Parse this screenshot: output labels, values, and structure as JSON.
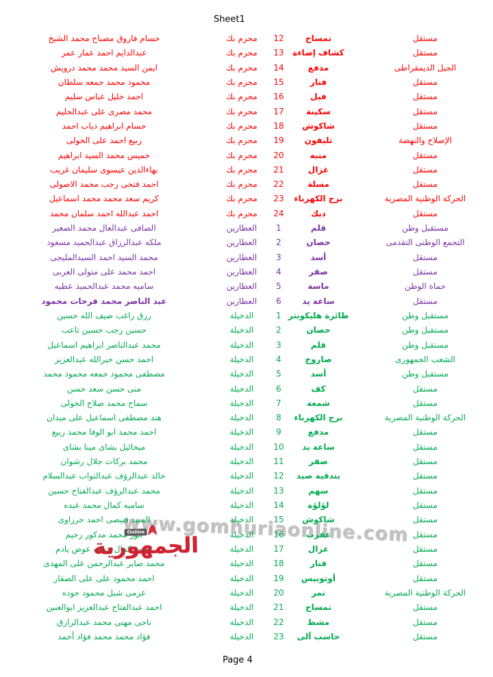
{
  "page": {
    "title": "Sheet1",
    "footer": "Page 4"
  },
  "palette": {
    "red": "#fe0000",
    "purple": "#7b31a0",
    "green": "#00a94f",
    "watermark_gray": "#b9b9b9",
    "logo_red": "#cf2130"
  },
  "watermark": {
    "url_text": "www.gomhuriaonline.com",
    "logo_text": "الجمهورية",
    "logo_sub": "Online"
  },
  "rows": [
    {
      "name": "حسام فاروق مصباح محمد الشيخ",
      "symbol": "تمساح",
      "number": 12,
      "district": "محرم بك",
      "party": "مستقل",
      "color": "red"
    },
    {
      "name": "عبدالدايم احمد عمار عمر",
      "symbol": "كشاف إضاءة",
      "number": 13,
      "district": "محرم بك",
      "party": "مستقل",
      "color": "red"
    },
    {
      "name": "ايمن السيد محمد محمد درويش",
      "symbol": "مدفع",
      "number": 14,
      "district": "محرم بك",
      "party": "الجيل الديمقراطى",
      "color": "red"
    },
    {
      "name": "محمود محمد جمعه سلطان",
      "symbol": "فنار",
      "number": 15,
      "district": "محرم بك",
      "party": "مستقل",
      "color": "red"
    },
    {
      "name": "احمد خليل عباس سليم",
      "symbol": "فيل",
      "number": 16,
      "district": "محرم بك",
      "party": "مستقل",
      "color": "red"
    },
    {
      "name": "محمد مصرى على عبدالحليم",
      "symbol": "سكينة",
      "number": 17,
      "district": "محرم بك",
      "party": "مستقل",
      "color": "red"
    },
    {
      "name": "حسام ابراهيم دياب احمد",
      "symbol": "شاكوش",
      "number": 18,
      "district": "محرم بك",
      "party": "مستقل",
      "color": "red"
    },
    {
      "name": "ربيع احمد على الخولى",
      "symbol": "تليفون",
      "number": 19,
      "district": "محرم بك",
      "party": "الإصلاح والنهضة",
      "color": "red"
    },
    {
      "name": "خميس محمد السيد ابراهيم",
      "symbol": "منبه",
      "number": 20,
      "district": "محرم بك",
      "party": "مستقل",
      "color": "red"
    },
    {
      "name": "بهاءالدين عيسوى سليمان غريب",
      "symbol": "غزال",
      "number": 21,
      "district": "محرم بك",
      "party": "مستقل",
      "color": "red"
    },
    {
      "name": "احمد فتحى رجب محمد الاصولى",
      "symbol": "مسلة",
      "number": 22,
      "district": "محرم بك",
      "party": "مستقل",
      "color": "red"
    },
    {
      "name": "كريم سعد محمد محمد اسماعيل",
      "symbol": "برج الكهرباء",
      "number": 23,
      "district": "محرم بك",
      "party": "الحركة الوطنية المصرية",
      "color": "red"
    },
    {
      "name": "احمد عبدالله احمد سلمان محمد",
      "symbol": "ديك",
      "number": 24,
      "district": "محرم بك",
      "party": "مستقل",
      "color": "red"
    },
    {
      "name": "الصافى عبدالعال محمد الصغير",
      "symbol": "قلم",
      "number": 1,
      "district": "العطارين",
      "party": "مستقبل وطن",
      "color": "purple"
    },
    {
      "name": "ملكه عبدالرزاق عبدالحميد مسعود",
      "symbol": "حصان",
      "number": 2,
      "district": "العطارين",
      "party": "التجمع الوطنى التقدمى",
      "color": "purple"
    },
    {
      "name": "محمد السيد احمد السيدالمليجى",
      "symbol": "أسد",
      "number": 3,
      "district": "العطارين",
      "party": "مستقل",
      "color": "purple"
    },
    {
      "name": "احمد محمد على متولى العربى",
      "symbol": "صقر",
      "number": 4,
      "district": "العطارين",
      "party": "مستقل",
      "color": "purple"
    },
    {
      "name": "ساميه محمد عبدالحميد عطيه",
      "symbol": "ماسة",
      "number": 5,
      "district": "العطارين",
      "party": "حماة الوطن",
      "color": "purple"
    },
    {
      "name": "عبد الناصر محمد فرحات محمود",
      "symbol": "ساعة يد",
      "number": 6,
      "district": "العطارين",
      "party": "مستقل",
      "color": "purple",
      "bold": true
    },
    {
      "name": "رزق راغب ضيف الله حسين",
      "symbol": "طائرة هليكوبتر",
      "number": 1,
      "district": "الدخيلة",
      "party": "مستقبل وطن",
      "color": "green"
    },
    {
      "name": "حسين رجب حسين تاعب",
      "symbol": "حصان",
      "number": 2,
      "district": "الدخيلة",
      "party": "مستقبل وطن",
      "color": "green"
    },
    {
      "name": "محمد عبدالناصر ابراهيم اسماعيل",
      "symbol": "قلم",
      "number": 3,
      "district": "الدخيلة",
      "party": "مستقبل وطن",
      "color": "green"
    },
    {
      "name": "احمد حسن خيرالله عبدالعزيز",
      "symbol": "صاروخ",
      "number": 4,
      "district": "الدخيلة",
      "party": "الشعب الجمهورى",
      "color": "green"
    },
    {
      "name": "مصطفى محمود جمعه محمود محمد",
      "symbol": "أسد",
      "number": 5,
      "district": "الدخيلة",
      "party": "مستقبل وطن",
      "color": "green"
    },
    {
      "name": "منى حسن سعد حسن",
      "symbol": "كف",
      "number": 6,
      "district": "الدخيلة",
      "party": "مستقل",
      "color": "green"
    },
    {
      "name": "سماح محمد صلاح الخولى",
      "symbol": "شمعة",
      "number": 7,
      "district": "الدخيلة",
      "party": "مستقل",
      "color": "green"
    },
    {
      "name": "هند مصطفى اسماعيل على ميدان",
      "symbol": "برج الكهرباء",
      "number": 8,
      "district": "الدخيلة",
      "party": "الحركة الوطنية المصرية",
      "color": "green"
    },
    {
      "name": "احمد محمد ابو الوفا محمد ربيع",
      "symbol": "مدفع",
      "number": 9,
      "district": "الدخيلة",
      "party": "مستقل",
      "color": "green"
    },
    {
      "name": "ميخائيل بشاى مينا بشاى",
      "symbol": "ساعة يد",
      "number": 10,
      "district": "الدخيلة",
      "party": "مستقل",
      "color": "green"
    },
    {
      "name": "محمد بركات جلال رشوان",
      "symbol": "صقر",
      "number": 11,
      "district": "الدخيلة",
      "party": "مستقل",
      "color": "green"
    },
    {
      "name": "خالد عبدالرؤف عبدالتواب عبدالسلام",
      "symbol": "بندقية صيد",
      "number": 12,
      "district": "الدخيلة",
      "party": "مستقل",
      "color": "green"
    },
    {
      "name": "محمد عبدالرؤف عبدالفتاح حسين",
      "symbol": "سهم",
      "number": 13,
      "district": "الدخيلة",
      "party": "مستقل",
      "color": "green"
    },
    {
      "name": "ساميه كمال محمد عبده",
      "symbol": "لؤلؤة",
      "number": 14,
      "district": "الدخيلة",
      "party": "مستقل",
      "color": "green"
    },
    {
      "name": "السيد قبيصى احمد حرزاوى",
      "symbol": "شاكوش",
      "number": 15,
      "district": "الدخيلة",
      "party": "مستقل",
      "color": "green"
    },
    {
      "name": "أنور محمد مدكور رحيم",
      "symbol": "عقرب",
      "number": 16,
      "district": "الدخيلة",
      "party": "مستقل",
      "color": "green"
    },
    {
      "name": "محمد كمال جمعه عوض يادم",
      "symbol": "غزال",
      "number": 17,
      "district": "الدخيلة",
      "party": "مستقل",
      "color": "green"
    },
    {
      "name": "محمد صابر عبدالرحمن على المهدى",
      "symbol": "فنار",
      "number": 18,
      "district": "الدخيلة",
      "party": "مستقل",
      "color": "green"
    },
    {
      "name": "احمد محمود على على الصقار",
      "symbol": "أوتوبيس",
      "number": 19,
      "district": "الدخيلة",
      "party": "مستقل",
      "color": "green"
    },
    {
      "name": "عزمى شبل محمود جوده",
      "symbol": "نمر",
      "number": 20,
      "district": "الدخيلة",
      "party": "الحركة الوطنية المصرية",
      "color": "green"
    },
    {
      "name": "احمد عبدالفتاح عبدالعزيز ابوالعنين",
      "symbol": "تمساح",
      "number": 21,
      "district": "الدخيلة",
      "party": "مستقل",
      "color": "green"
    },
    {
      "name": "ناجى مهنى محمد عبدالرازق",
      "symbol": "مشط",
      "number": 22,
      "district": "الدخيلة",
      "party": "مستقل",
      "color": "green"
    },
    {
      "name": "فؤاد محمد محمد فؤاد أحمد",
      "symbol": "حاسب آلى",
      "number": 23,
      "district": "الدخيلة",
      "party": "مستقل",
      "color": "green"
    }
  ]
}
